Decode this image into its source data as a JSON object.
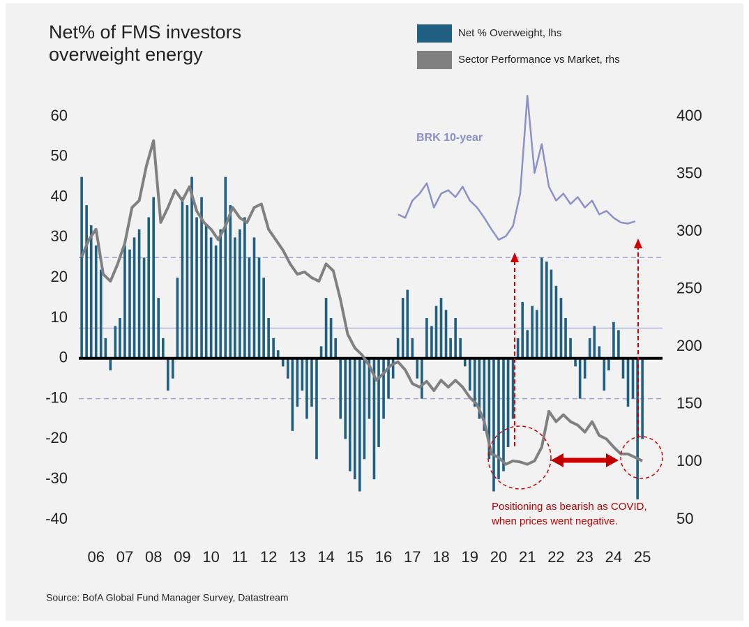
{
  "chart_data": {
    "type": "bar-line",
    "title": [
      "Net% of FMS investors",
      "overweight energy"
    ],
    "legend": "top-right",
    "annotations": [
      "BRK 10-year",
      "Positioning as bearish as COVID,",
      "when prices went negative."
    ],
    "source": "Source: BofA Global Fund Manager Survey, Datastream",
    "xlim": [
      2005.9,
      2026.2
    ],
    "xticks": [
      {
        "value": 2006.5,
        "label": "06"
      },
      {
        "value": 2007.5,
        "label": "07"
      },
      {
        "value": 2008.5,
        "label": "08"
      },
      {
        "value": 2009.5,
        "label": "09"
      },
      {
        "value": 2010.5,
        "label": "10"
      },
      {
        "value": 2011.5,
        "label": "11"
      },
      {
        "value": 2012.5,
        "label": "12"
      },
      {
        "value": 2013.5,
        "label": "13"
      },
      {
        "value": 2014.5,
        "label": "14"
      },
      {
        "value": 2015.5,
        "label": "15"
      },
      {
        "value": 2016.5,
        "label": "16"
      },
      {
        "value": 2017.5,
        "label": "17"
      },
      {
        "value": 2018.5,
        "label": "18"
      },
      {
        "value": 2019.5,
        "label": "19"
      },
      {
        "value": 2020.5,
        "label": "20"
      },
      {
        "value": 2021.5,
        "label": "21"
      },
      {
        "value": 2022.5,
        "label": "22"
      },
      {
        "value": 2023.5,
        "label": "23"
      },
      {
        "value": 2024.5,
        "label": "24"
      },
      {
        "value": 2025.5,
        "label": "25"
      }
    ],
    "ylim": [
      -40,
      60
    ],
    "yticks": [
      60,
      50,
      40,
      30,
      20,
      10,
      0,
      -10,
      -20,
      -30,
      -40
    ],
    "y2lim": [
      50,
      400
    ],
    "y2ticks": [
      400,
      350,
      300,
      250,
      200,
      150,
      100,
      50
    ],
    "reference_lines": [
      {
        "value": 25,
        "style": "dashed"
      },
      {
        "value": 7.5,
        "style": "solid"
      },
      {
        "value": -10,
        "style": "dashed"
      },
      {
        "value": 0,
        "style": "bold"
      }
    ],
    "series": [
      {
        "name": "Net % Overweight, lhs",
        "kind": "bar",
        "color": "#1f5f82",
        "x": [
          2006,
          2006.17,
          2006.33,
          2006.5,
          2006.67,
          2006.83,
          2007,
          2007.17,
          2007.33,
          2007.5,
          2007.67,
          2007.83,
          2008,
          2008.17,
          2008.33,
          2008.5,
          2008.67,
          2008.83,
          2009,
          2009.17,
          2009.33,
          2009.5,
          2009.67,
          2009.83,
          2010,
          2010.17,
          2010.33,
          2010.5,
          2010.67,
          2010.83,
          2011,
          2011.17,
          2011.33,
          2011.5,
          2011.67,
          2011.83,
          2012,
          2012.17,
          2012.33,
          2012.5,
          2012.67,
          2012.83,
          2013,
          2013.17,
          2013.33,
          2013.5,
          2013.67,
          2013.83,
          2014,
          2014.17,
          2014.33,
          2014.5,
          2014.67,
          2014.83,
          2015,
          2015.17,
          2015.33,
          2015.5,
          2015.67,
          2015.83,
          2016,
          2016.17,
          2016.33,
          2016.5,
          2016.67,
          2016.83,
          2017,
          2017.17,
          2017.33,
          2017.5,
          2017.67,
          2017.83,
          2018,
          2018.17,
          2018.33,
          2018.5,
          2018.67,
          2018.83,
          2019,
          2019.17,
          2019.33,
          2019.5,
          2019.67,
          2019.83,
          2020,
          2020.17,
          2020.33,
          2020.5,
          2020.67,
          2020.83,
          2021,
          2021.17,
          2021.33,
          2021.5,
          2021.67,
          2021.83,
          2022,
          2022.17,
          2022.33,
          2022.5,
          2022.67,
          2022.83,
          2023,
          2023.17,
          2023.33,
          2023.5,
          2023.67,
          2023.83,
          2024,
          2024.17,
          2024.33,
          2024.5,
          2024.67,
          2024.83,
          2025,
          2025.17,
          2025.33,
          2025.5
        ],
        "values": [
          45,
          38,
          33,
          28,
          22,
          5,
          -3,
          8,
          10,
          28,
          27,
          30,
          32,
          25,
          35,
          40,
          15,
          5,
          -8,
          -5,
          20,
          40,
          38,
          45,
          35,
          40,
          33,
          30,
          28,
          32,
          45,
          38,
          30,
          32,
          35,
          25,
          30,
          25,
          20,
          10,
          5,
          2,
          -2,
          -5,
          -18,
          -12,
          -8,
          -15,
          -12,
          -25,
          3,
          15,
          10,
          5,
          -15,
          -20,
          -28,
          -30,
          -33,
          -25,
          -15,
          -30,
          -22,
          -15,
          -10,
          -5,
          5,
          15,
          17,
          5,
          -5,
          -10,
          10,
          8,
          13,
          15,
          12,
          5,
          10,
          5,
          -2,
          -8,
          -12,
          -15,
          -18,
          -25,
          -33,
          -30,
          -28,
          -22,
          -15,
          5,
          14,
          7,
          13,
          12,
          25,
          24,
          22,
          18,
          15,
          10,
          5,
          -2,
          -10,
          -5,
          5,
          8,
          3,
          -8,
          -3,
          9,
          7,
          -5,
          -12,
          -10,
          -35,
          -20
        ]
      },
      {
        "name": "Sector Performance vs Market, rhs",
        "kind": "line",
        "axis": "y2",
        "color": "#808080",
        "x": [
          2006,
          2006.25,
          2006.5,
          2006.75,
          2007,
          2007.25,
          2007.5,
          2007.75,
          2008,
          2008.25,
          2008.5,
          2008.75,
          2009,
          2009.25,
          2009.5,
          2009.75,
          2010,
          2010.25,
          2010.5,
          2010.75,
          2011,
          2011.25,
          2011.5,
          2011.75,
          2012,
          2012.25,
          2012.5,
          2012.75,
          2013,
          2013.25,
          2013.5,
          2013.75,
          2014,
          2014.25,
          2014.5,
          2014.75,
          2015,
          2015.25,
          2015.5,
          2015.75,
          2016,
          2016.25,
          2016.5,
          2016.75,
          2017,
          2017.25,
          2017.5,
          2017.75,
          2018,
          2018.25,
          2018.5,
          2018.75,
          2019,
          2019.25,
          2019.5,
          2019.75,
          2020,
          2020.25,
          2020.5,
          2020.75,
          2021,
          2021.25,
          2021.5,
          2021.75,
          2022,
          2022.25,
          2022.5,
          2022.75,
          2023,
          2023.25,
          2023.5,
          2023.75,
          2024,
          2024.25,
          2024.5,
          2024.75,
          2025,
          2025.25,
          2025.5
        ],
        "values": [
          278,
          293,
          302,
          263,
          257,
          272,
          290,
          321,
          327,
          357,
          379,
          308,
          321,
          336,
          327,
          339,
          318,
          308,
          302,
          293,
          305,
          321,
          312,
          308,
          321,
          324,
          302,
          293,
          284,
          272,
          263,
          265,
          260,
          257,
          272,
          266,
          241,
          211,
          199,
          193,
          184,
          171,
          177,
          184,
          187,
          180,
          168,
          165,
          170,
          162,
          171,
          165,
          171,
          165,
          156,
          150,
          135,
          107,
          104,
          98,
          101,
          100,
          98,
          101,
          113,
          144,
          135,
          141,
          135,
          132,
          126,
          135,
          123,
          120,
          113,
          107,
          107,
          104,
          101
        ]
      },
      {
        "name": "BRK 10-year",
        "kind": "line",
        "axis": "y2",
        "color": "#8b8fca",
        "in_legend": false,
        "x": [
          2017,
          2017.25,
          2017.5,
          2017.75,
          2018,
          2018.25,
          2018.5,
          2018.75,
          2019,
          2019.25,
          2019.5,
          2019.75,
          2020,
          2020.25,
          2020.5,
          2020.75,
          2021,
          2021.25,
          2021.5,
          2021.75,
          2022,
          2022.25,
          2022.5,
          2022.75,
          2023,
          2023.25,
          2023.5,
          2023.75,
          2024,
          2024.25,
          2024.5,
          2024.75,
          2025,
          2025.25
        ],
        "values": [
          315,
          312,
          327,
          333,
          342,
          321,
          333,
          336,
          330,
          339,
          327,
          321,
          312,
          302,
          293,
          296,
          305,
          333,
          418,
          351,
          376,
          339,
          327,
          333,
          324,
          330,
          321,
          327,
          315,
          318,
          312,
          308,
          307,
          309
        ]
      }
    ]
  }
}
